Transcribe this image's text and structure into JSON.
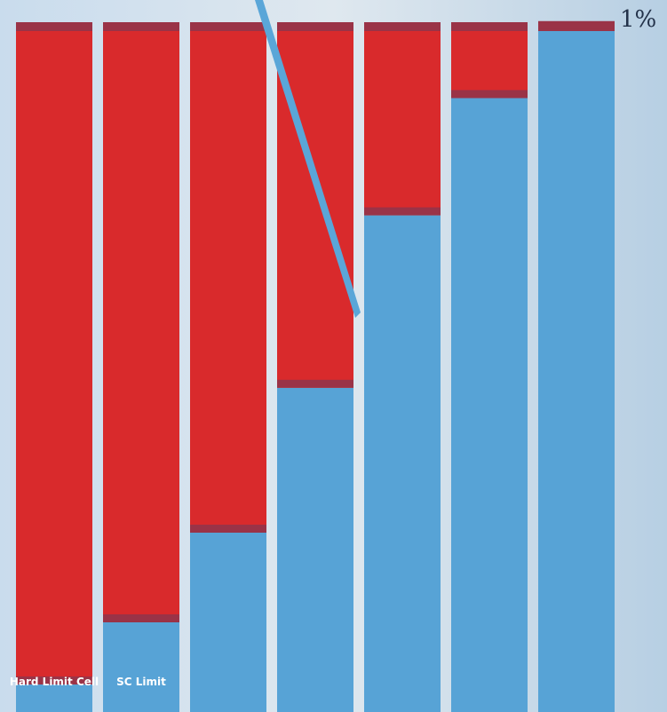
{
  "chart_data": {
    "type": "bar",
    "stacked": true,
    "orientation": "vertical",
    "max_label": "1%",
    "ylim": [
      0,
      1
    ],
    "categories": [
      "Hard Limit Cell",
      "SC Limit",
      "",
      "",
      "",
      "",
      ""
    ],
    "series": [
      {
        "values": [
          0.04,
          0.13,
          0.26,
          0.47,
          0.72,
          0.89,
          0.99
        ]
      },
      {
        "values": [
          0.96,
          0.87,
          0.74,
          0.53,
          0.28,
          0.11,
          0.01
        ]
      }
    ],
    "colors": {
      "lower": "#57a3d6",
      "upper": "#d92a2c",
      "divider": "#9a3347",
      "background": "#e3eaf0",
      "label": "#ffffff",
      "diagonal": "#5aa6d8"
    }
  }
}
